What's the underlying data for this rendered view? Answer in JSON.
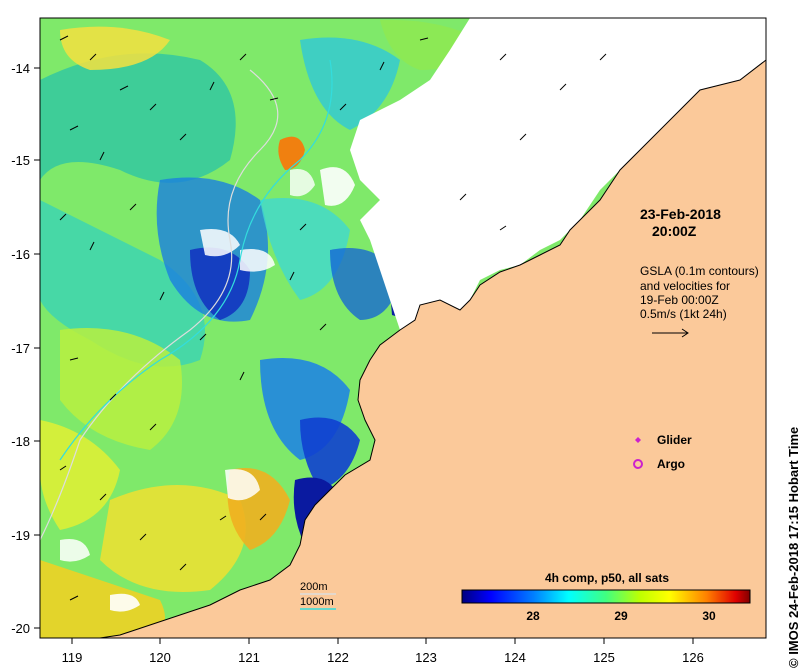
{
  "map": {
    "colors": {
      "land": "#fbc99a",
      "cloud": "#ffffff",
      "coast": "#000000",
      "isobath_200m": "#dddddd",
      "isobath_1000m": "#33dddd"
    },
    "lon_ticks": [
      "119",
      "120",
      "121",
      "122",
      "123",
      "124",
      "125",
      "126"
    ],
    "lat_ticks": [
      "-14",
      "-15",
      "-16",
      "-17",
      "-18",
      "-19",
      "-20"
    ]
  },
  "annotations": {
    "date": "23-Feb-2018",
    "time": "20:00Z",
    "gsla_lines": [
      "GSLA (0.1m contours)",
      "and velocities for",
      "19-Feb 00:00Z",
      "0.5m/s (1kt 24h)"
    ]
  },
  "legend": {
    "items": [
      {
        "label": "Glider",
        "color": "#cc22cc",
        "symbol": "diamond"
      },
      {
        "label": "Argo",
        "color": "#cc22cc",
        "symbol": "circle"
      }
    ],
    "isobaths": [
      "200m",
      "1000m"
    ]
  },
  "colorbar": {
    "title": "4h comp, p50, all sats",
    "ticks": [
      "28",
      "29",
      "30"
    ],
    "colors": [
      "#00007f",
      "#0000ff",
      "#0080ff",
      "#00ffff",
      "#00ff80",
      "#80ff00",
      "#ffff00",
      "#ff8000",
      "#ff0000",
      "#800000"
    ]
  },
  "credit": "© IMOS 24-Feb-2018 17:15 Hobart Time"
}
